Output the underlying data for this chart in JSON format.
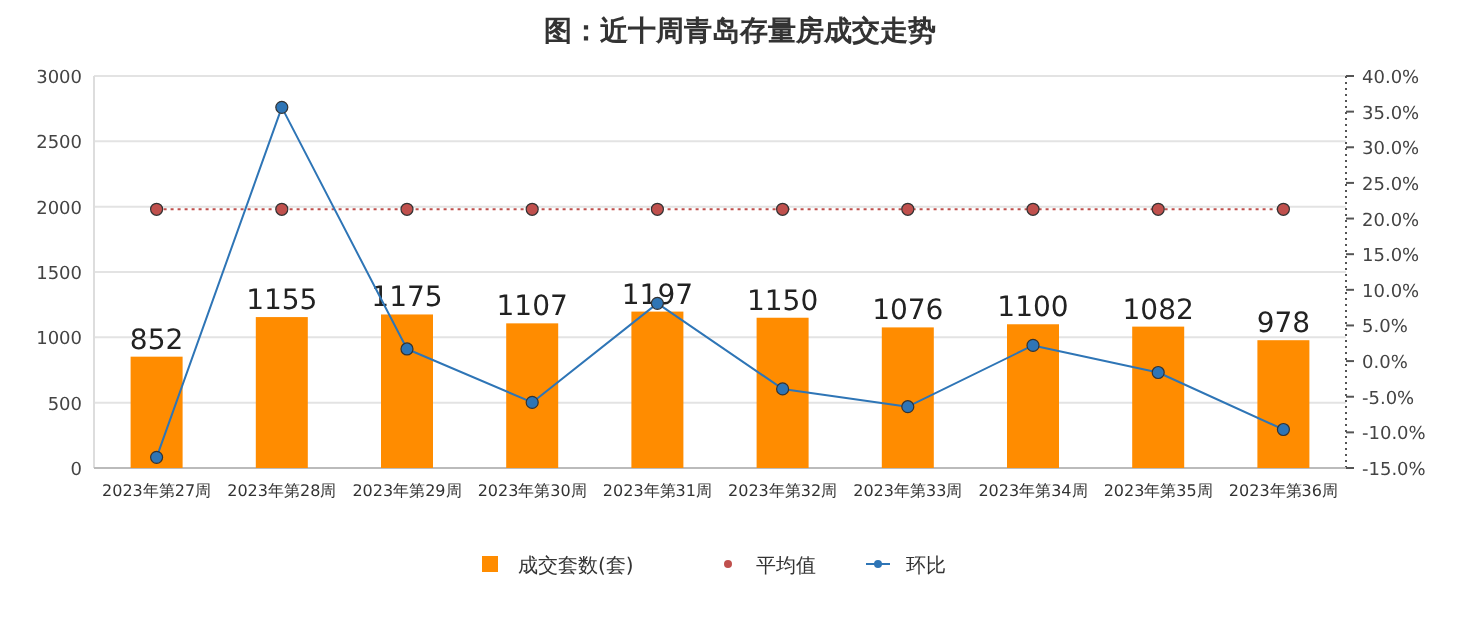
{
  "chart_data": {
    "type": "bar",
    "title": "图：近十周青岛存量房成交走势",
    "categories": [
      "2023年第27周",
      "2023年第28周",
      "2023年第29周",
      "2023年第30周",
      "2023年第31周",
      "2023年第32周",
      "2023年第33周",
      "2023年第34周",
      "2023年第35周",
      "2023年第36周"
    ],
    "series": [
      {
        "name": "成交套数(套)",
        "color": "#ff8c00",
        "values": [
          852,
          1155,
          1175,
          1107,
          1197,
          1150,
          1076,
          1100,
          1082,
          978
        ],
        "value_labels": [
          "852",
          "1155",
          "1175",
          "1107",
          "1197",
          "1150",
          "1076",
          "1100",
          "1082",
          "978"
        ]
      },
      {
        "name": "平均值",
        "type": "line",
        "axis": "y2",
        "color": "#c0504d",
        "line_style": "dotted",
        "values": [
          21.3,
          21.3,
          21.3,
          21.3,
          21.3,
          21.3,
          21.3,
          21.3,
          21.3,
          21.3
        ]
      },
      {
        "name": "环比",
        "type": "line",
        "axis": "y2",
        "color": "#2e75b6",
        "line_style": "solid",
        "values": [
          -13.5,
          35.6,
          1.7,
          -5.8,
          8.1,
          -3.9,
          -6.4,
          2.2,
          -1.6,
          -9.6
        ]
      }
    ],
    "ylim": [
      0,
      3000
    ],
    "yticks": [
      0,
      500,
      1000,
      1500,
      2000,
      2500,
      3000
    ],
    "y2lim": [
      -15,
      40
    ],
    "y2ticks": [
      {
        "value": -15,
        "label": "-15.0%"
      },
      {
        "value": -10,
        "label": "-10.0%"
      },
      {
        "value": -5,
        "label": "-5.0%"
      },
      {
        "value": 0,
        "label": "0.0%"
      },
      {
        "value": 5,
        "label": "5.0%"
      },
      {
        "value": 10,
        "label": "10.0%"
      },
      {
        "value": 15,
        "label": "15.0%"
      },
      {
        "value": 20,
        "label": "20.0%"
      },
      {
        "value": 25,
        "label": "25.0%"
      },
      {
        "value": 30,
        "label": "30.0%"
      },
      {
        "value": 35,
        "label": "35.0%"
      },
      {
        "value": 40,
        "label": "40.0%"
      }
    ],
    "grid": "y",
    "legend": "bottom",
    "marker": "circle"
  }
}
